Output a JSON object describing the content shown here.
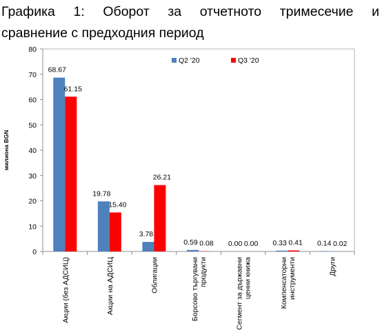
{
  "title": {
    "line1": "Графика 1: Оборот за отчетното тримесечие и",
    "line2": "сравнение с предходния период"
  },
  "chart_data": {
    "type": "bar",
    "ylabel": "милиона BGN",
    "ylim": [
      0,
      80
    ],
    "yticks": [
      0,
      10,
      20,
      30,
      40,
      50,
      60,
      70,
      80
    ],
    "grid": false,
    "legend_position": "top-right",
    "categories": [
      [
        "Акции (без АДСИЦ)"
      ],
      [
        "Акции на АДСИЦ"
      ],
      [
        "Облигации"
      ],
      [
        "Борсово търгувани",
        "продукти"
      ],
      [
        "Сегмент за държавни",
        "ценни книжа"
      ],
      [
        "Компенсаторни",
        "инструменти"
      ],
      [
        "Други"
      ]
    ],
    "series": [
      {
        "name": "Q2 '20",
        "color": "#4F81BD",
        "values": [
          68.67,
          19.78,
          3.78,
          0.59,
          0.0,
          0.33,
          0.14
        ],
        "labels": [
          "68.67",
          "19.78",
          "3.78",
          "0.59",
          "0.00",
          "0.33",
          "0.14"
        ]
      },
      {
        "name": "Q3 '20",
        "color": "#FF0000",
        "values": [
          61.15,
          15.4,
          26.21,
          0.08,
          0.0,
          0.41,
          0.02
        ],
        "labels": [
          "61.15",
          "15.40",
          "26.21",
          "0.08",
          "0.00",
          "0.41",
          "0.02"
        ]
      }
    ]
  }
}
